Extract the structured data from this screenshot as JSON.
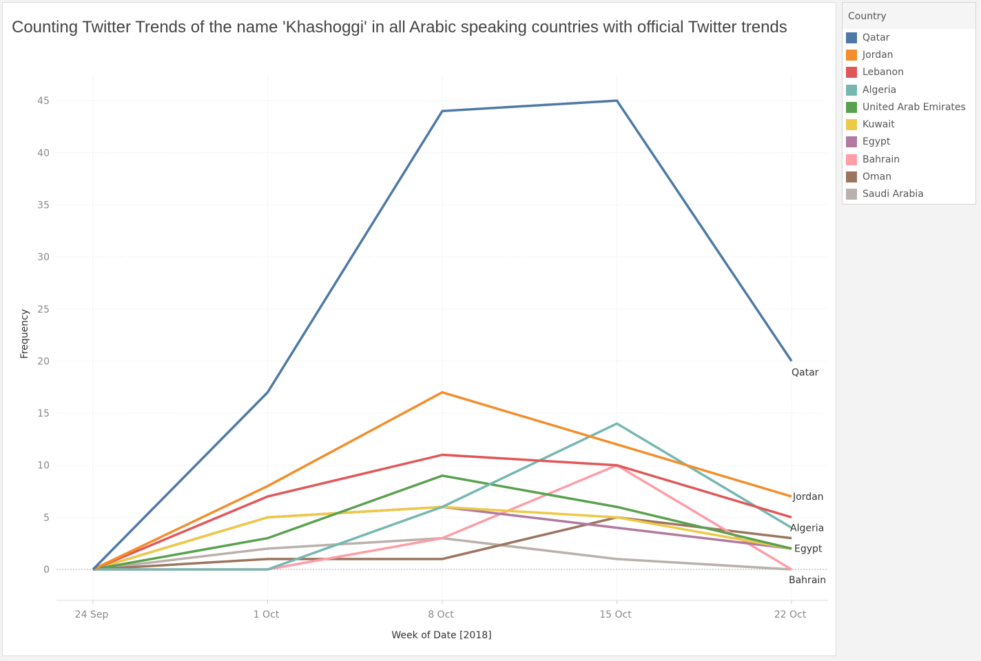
{
  "chart_data": {
    "type": "line",
    "title": "Counting Twitter Trends of the name 'Khashoggi' in all Arabic speaking countries with official Twitter trends",
    "xlabel": "Week of Date [2018]",
    "ylabel": "Frequency",
    "categories": [
      "24 Sep",
      "1 Oct",
      "8 Oct",
      "15 Oct",
      "22 Oct"
    ],
    "ylim": [
      -3,
      45
    ],
    "yticks": [
      0,
      5,
      10,
      15,
      20,
      25,
      30,
      35,
      40,
      45
    ],
    "grid": true,
    "legend_title": "Country",
    "legend_position": "right",
    "series": [
      {
        "name": "Qatar",
        "color": "#4e79a7",
        "values": [
          0,
          17,
          44,
          45,
          20
        ],
        "end_label": "Qatar"
      },
      {
        "name": "Jordan",
        "color": "#f28e2b",
        "values": [
          0,
          8,
          17,
          12,
          7
        ],
        "end_label": "Jordan"
      },
      {
        "name": "Lebanon",
        "color": "#e15759",
        "values": [
          0,
          7,
          11,
          10,
          5
        ],
        "end_label": ""
      },
      {
        "name": "Algeria",
        "color": "#76b7b2",
        "values": [
          0,
          0,
          6,
          14,
          4
        ],
        "end_label": "Algeria"
      },
      {
        "name": "United Arab Emirates",
        "color": "#59a14f",
        "values": [
          0,
          3,
          9,
          6,
          2
        ],
        "end_label": ""
      },
      {
        "name": "Kuwait",
        "color": "#edc948",
        "values": [
          0,
          5,
          6,
          5,
          2
        ],
        "end_label": ""
      },
      {
        "name": "Egypt",
        "color": "#b07aa1",
        "values": [
          0,
          5,
          6,
          4,
          2
        ],
        "end_label": "Egypt"
      },
      {
        "name": "Bahrain",
        "color": "#ff9da7",
        "values": [
          0,
          0,
          3,
          10,
          0
        ],
        "end_label": "Bahrain"
      },
      {
        "name": "Oman",
        "color": "#9c755f",
        "values": [
          0,
          1,
          1,
          5,
          3
        ],
        "end_label": ""
      },
      {
        "name": "Saudi Arabia",
        "color": "#bab0ac",
        "values": [
          0,
          2,
          3,
          1,
          0
        ],
        "end_label": ""
      }
    ]
  }
}
